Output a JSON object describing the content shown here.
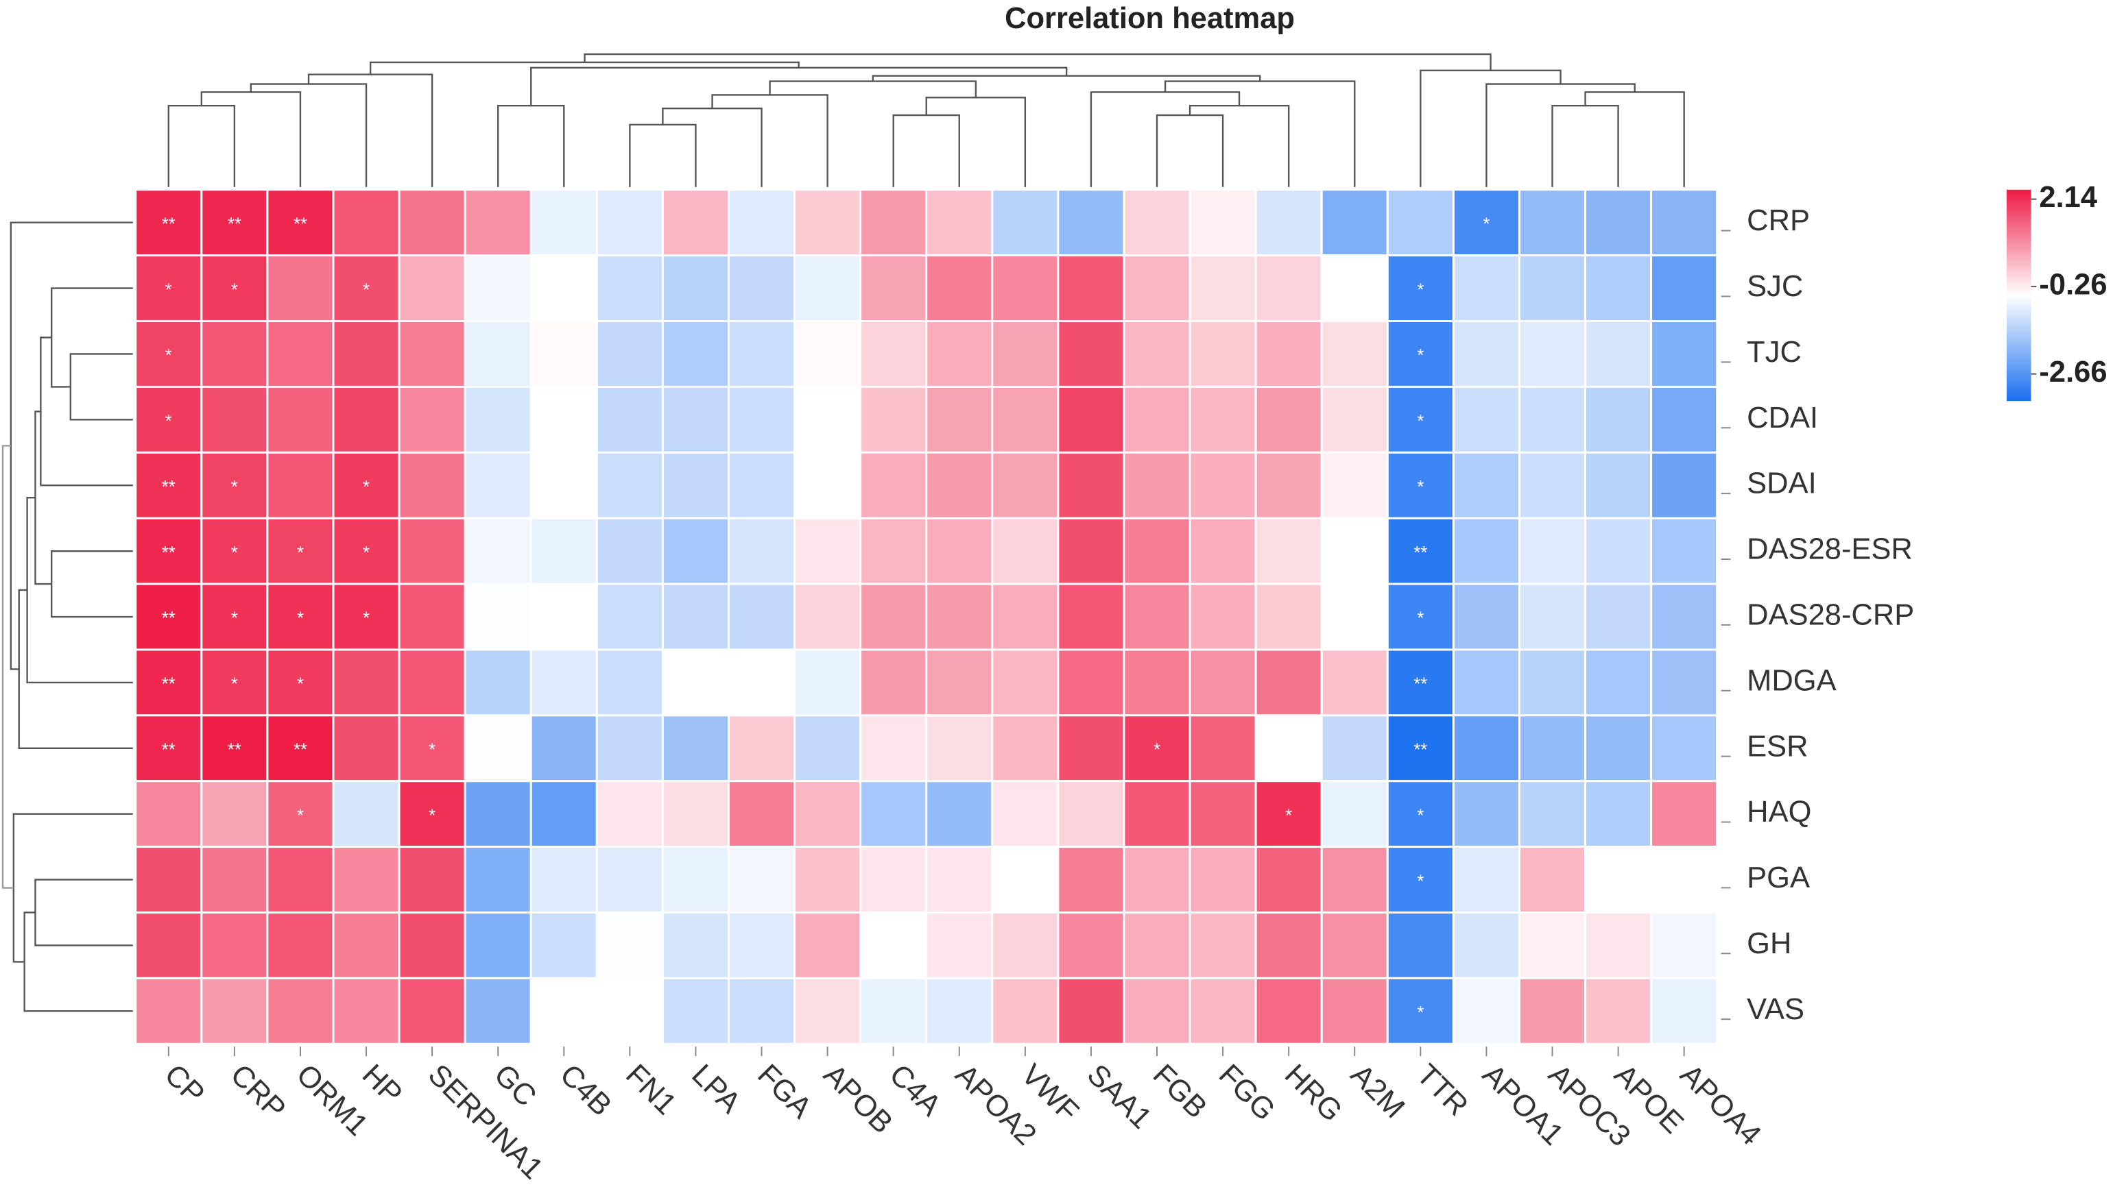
{
  "chart_data": {
    "type": "heatmap",
    "title": "Correlation heatmap",
    "x": [
      "CP",
      "CRP",
      "ORM1",
      "HP",
      "SERPINA1",
      "GC",
      "C4B",
      "FN1",
      "LPA",
      "FGA",
      "APOB",
      "C4A",
      "APOA2",
      "VWF",
      "SAA1",
      "FGB",
      "FGG",
      "HRG",
      "A2M",
      "TTR",
      "APOA1",
      "APOC3",
      "APOE",
      "APOA4"
    ],
    "y": [
      "CRP",
      "SJC",
      "TJC",
      "CDAI",
      "SDAI",
      "DAS28-ESR",
      "DAS28-CRP",
      "MDGA",
      "ESR",
      "HAQ",
      "PGA",
      "GH",
      "VAS"
    ],
    "values": [
      [
        2.0,
        2.0,
        2.0,
        1.5,
        1.2,
        0.9,
        -0.5,
        -0.6,
        0.5,
        -0.6,
        0.3,
        0.8,
        0.4,
        -1.0,
        -1.4,
        0.2,
        -0.1,
        -0.7,
        -1.6,
        -1.1,
        -2.2,
        -1.4,
        -1.5,
        -1.5
      ],
      [
        1.8,
        1.8,
        1.2,
        1.6,
        0.6,
        -0.4,
        -0.26,
        -0.8,
        -1.0,
        -0.9,
        -0.5,
        0.7,
        1.1,
        1.0,
        1.5,
        0.5,
        0.1,
        0.2,
        -0.26,
        -2.3,
        -0.8,
        -1.0,
        -1.1,
        -1.9
      ],
      [
        1.7,
        1.5,
        1.3,
        1.6,
        1.1,
        -0.5,
        -0.2,
        -0.9,
        -1.1,
        -0.8,
        -0.2,
        0.2,
        0.6,
        0.7,
        1.6,
        0.5,
        0.3,
        0.6,
        0.1,
        -2.3,
        -0.7,
        -0.6,
        -0.7,
        -1.6
      ],
      [
        1.8,
        1.6,
        1.4,
        1.7,
        1.0,
        -0.7,
        -0.26,
        -0.9,
        -0.9,
        -0.8,
        -0.26,
        0.4,
        0.7,
        0.7,
        1.7,
        0.6,
        0.5,
        0.8,
        0.1,
        -2.3,
        -0.8,
        -0.8,
        -1.0,
        -1.7
      ],
      [
        1.9,
        1.7,
        1.5,
        1.8,
        1.2,
        -0.6,
        -0.26,
        -0.8,
        -0.9,
        -0.8,
        -0.26,
        0.6,
        0.8,
        0.7,
        1.6,
        0.8,
        0.6,
        0.7,
        -0.1,
        -2.3,
        -1.1,
        -0.8,
        -1.0,
        -1.8
      ],
      [
        2.0,
        1.8,
        1.7,
        1.8,
        1.4,
        -0.4,
        -0.5,
        -0.9,
        -1.2,
        -0.7,
        0.0,
        0.5,
        0.6,
        0.2,
        1.6,
        1.1,
        0.6,
        0.1,
        -0.26,
        -2.5,
        -1.2,
        -0.6,
        -0.8,
        -1.2
      ],
      [
        2.1,
        1.9,
        1.9,
        1.9,
        1.5,
        -0.3,
        -0.26,
        -0.8,
        -0.9,
        -0.9,
        0.2,
        0.8,
        0.8,
        0.6,
        1.5,
        1.0,
        0.6,
        0.3,
        -0.26,
        -2.3,
        -1.3,
        -0.7,
        -0.9,
        -1.3
      ],
      [
        2.0,
        1.8,
        1.8,
        1.6,
        1.5,
        -1.0,
        -0.6,
        -0.8,
        -0.26,
        -0.26,
        -0.5,
        0.8,
        0.7,
        0.5,
        1.3,
        1.1,
        0.9,
        1.2,
        0.4,
        -2.5,
        -1.2,
        -1.0,
        -1.2,
        -1.3
      ],
      [
        2.0,
        2.1,
        2.1,
        1.6,
        1.5,
        -0.3,
        -1.5,
        -0.9,
        -1.3,
        0.3,
        -0.9,
        0.0,
        0.1,
        0.5,
        1.6,
        1.8,
        1.4,
        -0.26,
        -0.9,
        -2.6,
        -1.9,
        -1.4,
        -1.4,
        -1.2
      ],
      [
        1.0,
        0.7,
        1.4,
        -0.7,
        1.9,
        -1.8,
        -1.9,
        0.0,
        0.1,
        1.1,
        0.5,
        -1.2,
        -1.4,
        0.0,
        0.2,
        1.5,
        1.4,
        1.9,
        -0.5,
        -2.3,
        -1.4,
        -1.0,
        -1.1,
        1.0
      ],
      [
        1.6,
        1.2,
        1.5,
        1.0,
        1.6,
        -1.6,
        -0.6,
        -0.6,
        -0.5,
        -0.4,
        0.4,
        0.0,
        0.0,
        -0.26,
        1.1,
        0.6,
        0.6,
        1.4,
        0.9,
        -2.3,
        -0.6,
        0.5,
        -0.26,
        -0.26
      ],
      [
        1.6,
        1.3,
        1.5,
        1.1,
        1.6,
        -1.6,
        -0.8,
        -0.3,
        -0.7,
        -0.6,
        0.6,
        -0.26,
        0.0,
        0.2,
        1.0,
        0.6,
        0.5,
        1.2,
        0.9,
        -2.2,
        -0.7,
        -0.1,
        0.0,
        -0.4
      ],
      [
        1.0,
        0.8,
        1.1,
        1.0,
        1.5,
        -1.5,
        -0.26,
        -0.26,
        -0.8,
        -0.8,
        0.1,
        -0.5,
        -0.6,
        0.4,
        1.6,
        0.6,
        0.5,
        1.3,
        1.0,
        -2.2,
        -0.4,
        0.8,
        0.4,
        -0.5
      ]
    ],
    "stars": [
      [
        "**",
        "**",
        "**",
        null,
        null,
        null,
        null,
        null,
        null,
        null,
        null,
        null,
        null,
        null,
        null,
        null,
        null,
        null,
        null,
        null,
        "*",
        null,
        null,
        null
      ],
      [
        "*",
        "*",
        null,
        "*",
        null,
        null,
        null,
        null,
        null,
        null,
        null,
        null,
        null,
        null,
        null,
        null,
        null,
        null,
        null,
        "*",
        null,
        null,
        null,
        null
      ],
      [
        "*",
        null,
        null,
        null,
        null,
        null,
        null,
        null,
        null,
        null,
        null,
        null,
        null,
        null,
        null,
        null,
        null,
        null,
        null,
        "*",
        null,
        null,
        null,
        null
      ],
      [
        "*",
        null,
        null,
        null,
        null,
        null,
        null,
        null,
        null,
        null,
        null,
        null,
        null,
        null,
        null,
        null,
        null,
        null,
        null,
        "*",
        null,
        null,
        null,
        null
      ],
      [
        "**",
        "*",
        null,
        "*",
        null,
        null,
        null,
        null,
        null,
        null,
        null,
        null,
        null,
        null,
        null,
        null,
        null,
        null,
        null,
        "*",
        null,
        null,
        null,
        null
      ],
      [
        "**",
        "*",
        "*",
        "*",
        null,
        null,
        null,
        null,
        null,
        null,
        null,
        null,
        null,
        null,
        null,
        null,
        null,
        null,
        null,
        "**",
        null,
        null,
        null,
        null
      ],
      [
        "**",
        "*",
        "*",
        "*",
        null,
        null,
        null,
        null,
        null,
        null,
        null,
        null,
        null,
        null,
        null,
        null,
        null,
        null,
        null,
        "*",
        null,
        null,
        null,
        null
      ],
      [
        "**",
        "*",
        "*",
        null,
        null,
        null,
        null,
        null,
        null,
        null,
        null,
        null,
        null,
        null,
        null,
        null,
        null,
        null,
        null,
        "**",
        null,
        null,
        null,
        null
      ],
      [
        "**",
        "**",
        "**",
        null,
        "*",
        null,
        null,
        null,
        null,
        null,
        null,
        null,
        null,
        null,
        null,
        "*",
        null,
        null,
        null,
        "**",
        null,
        null,
        null,
        null
      ],
      [
        null,
        null,
        "*",
        null,
        "*",
        null,
        null,
        null,
        null,
        null,
        null,
        null,
        null,
        null,
        null,
        null,
        null,
        "*",
        null,
        "*",
        null,
        null,
        null,
        null
      ],
      [
        null,
        null,
        null,
        null,
        null,
        null,
        null,
        null,
        null,
        null,
        null,
        null,
        null,
        null,
        null,
        null,
        null,
        null,
        null,
        "*",
        null,
        null,
        null,
        null
      ],
      [
        null,
        null,
        null,
        null,
        null,
        null,
        null,
        null,
        null,
        null,
        null,
        null,
        null,
        null,
        null,
        null,
        null,
        null,
        null,
        null,
        null,
        null,
        null,
        null
      ],
      [
        null,
        null,
        null,
        null,
        null,
        null,
        null,
        null,
        null,
        null,
        null,
        null,
        null,
        null,
        null,
        null,
        null,
        null,
        null,
        "*",
        null,
        null,
        null,
        null
      ]
    ],
    "zlim": [
      -2.66,
      2.14
    ],
    "zticks": [
      2.14,
      -0.26,
      -2.66
    ],
    "colors": [
      "#1a6ff0",
      "#ffffff",
      "#ee1a43"
    ]
  }
}
